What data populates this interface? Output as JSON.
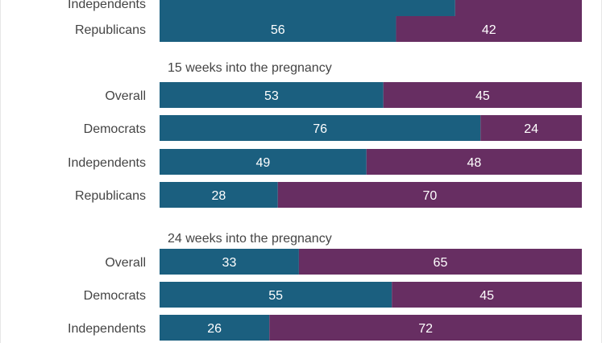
{
  "colors": {
    "first": "#1b5f7f",
    "second": "#672e62",
    "label_text": "#444444",
    "bar_text": "#ffffff"
  },
  "chart_data": {
    "type": "bar",
    "orientation": "horizontal",
    "stacked": true,
    "xlim": [
      0,
      100
    ],
    "grid": false,
    "legend": "none",
    "groups": [
      {
        "title": "",
        "rows": [
          {
            "category": "Independents",
            "values": [
              null,
              null
            ]
          },
          {
            "category": "Republicans",
            "values": [
              56,
              42
            ]
          }
        ]
      },
      {
        "title": "15 weeks into the pregnancy",
        "rows": [
          {
            "category": "Overall",
            "values": [
              53,
              45
            ]
          },
          {
            "category": "Democrats",
            "values": [
              76,
              24
            ]
          },
          {
            "category": "Independents",
            "values": [
              49,
              48
            ]
          },
          {
            "category": "Republicans",
            "values": [
              28,
              70
            ]
          }
        ]
      },
      {
        "title": "24 weeks into the pregnancy",
        "rows": [
          {
            "category": "Overall",
            "values": [
              33,
              65
            ]
          },
          {
            "category": "Democrats",
            "values": [
              55,
              45
            ]
          },
          {
            "category": "Independents",
            "values": [
              26,
              72
            ]
          }
        ]
      }
    ]
  }
}
